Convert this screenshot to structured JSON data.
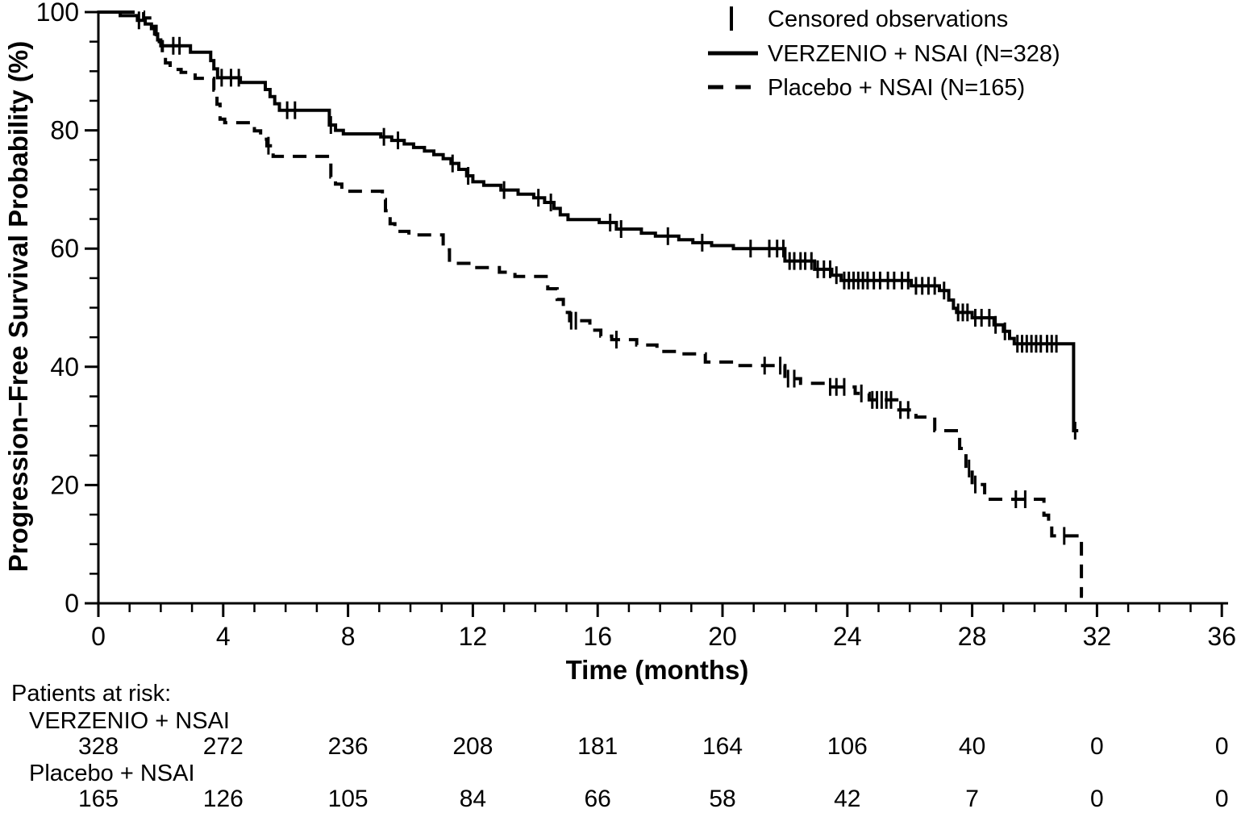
{
  "colors": {
    "foreground": "#000000",
    "background": "#ffffff"
  },
  "chart_data": {
    "type": "line",
    "subtype": "kaplan-meier-step",
    "title": "",
    "xlabel": "Time (months)",
    "ylabel": "Progression–Free Survival Probability (%)",
    "xlim": [
      0,
      36
    ],
    "ylim": [
      0,
      100
    ],
    "grid": false,
    "legend_position": "top-right",
    "x_major_ticks": [
      0,
      4,
      8,
      12,
      16,
      20,
      24,
      28,
      32,
      36
    ],
    "x_minor_step": 1,
    "y_major_ticks": [
      0,
      20,
      40,
      60,
      80,
      100
    ],
    "y_minor_step": 5,
    "legend": [
      {
        "label": "Censored observations",
        "marker": "censor-tick"
      },
      {
        "label": "VERZENIO + NSAI (N=328)",
        "marker": "solid-line"
      },
      {
        "label": "Placebo + NSAI (N=165)",
        "marker": "dashed-line"
      }
    ],
    "series": [
      {
        "name": "VERZENIO + NSAI (N=328)",
        "style": "solid",
        "steps": [
          [
            0,
            100
          ],
          [
            0.7,
            99.4
          ],
          [
            1.25,
            98.6
          ],
          [
            1.5,
            98.0
          ],
          [
            1.7,
            97.2
          ],
          [
            1.8,
            96.3
          ],
          [
            1.9,
            95.3
          ],
          [
            2.0,
            94.3
          ],
          [
            2.95,
            93.2
          ],
          [
            3.6,
            91.8
          ],
          [
            3.7,
            90.4
          ],
          [
            3.82,
            88.9
          ],
          [
            4.55,
            88.1
          ],
          [
            5.35,
            86.9
          ],
          [
            5.5,
            85.7
          ],
          [
            5.65,
            84.5
          ],
          [
            5.8,
            83.4
          ],
          [
            7.4,
            80.9
          ],
          [
            7.6,
            80.0
          ],
          [
            7.85,
            79.4
          ],
          [
            9.05,
            78.9
          ],
          [
            9.4,
            78.3
          ],
          [
            9.8,
            77.7
          ],
          [
            10.1,
            77.1
          ],
          [
            10.45,
            76.5
          ],
          [
            10.75,
            75.9
          ],
          [
            11.05,
            75.2
          ],
          [
            11.3,
            74.4
          ],
          [
            11.55,
            73.4
          ],
          [
            11.8,
            72.3
          ],
          [
            12.0,
            71.3
          ],
          [
            12.35,
            70.7
          ],
          [
            12.9,
            69.9
          ],
          [
            13.45,
            69.2
          ],
          [
            13.95,
            68.6
          ],
          [
            14.3,
            67.8
          ],
          [
            14.6,
            66.8
          ],
          [
            14.8,
            65.7
          ],
          [
            15.05,
            64.9
          ],
          [
            16.05,
            64.4
          ],
          [
            16.6,
            63.3
          ],
          [
            17.4,
            62.6
          ],
          [
            17.85,
            62.1
          ],
          [
            18.6,
            61.5
          ],
          [
            19.05,
            61.0
          ],
          [
            19.65,
            60.5
          ],
          [
            20.35,
            60.0
          ],
          [
            22.0,
            57.9
          ],
          [
            22.95,
            56.5
          ],
          [
            23.5,
            55.5
          ],
          [
            23.8,
            54.6
          ],
          [
            26.05,
            53.7
          ],
          [
            26.95,
            52.9
          ],
          [
            27.25,
            51.3
          ],
          [
            27.4,
            49.9
          ],
          [
            27.5,
            49.2
          ],
          [
            28.0,
            48.3
          ],
          [
            28.7,
            47.1
          ],
          [
            29.0,
            46.0
          ],
          [
            29.2,
            44.8
          ],
          [
            29.35,
            43.9
          ],
          [
            31.25,
            29.2
          ],
          [
            31.4,
            29.2
          ]
        ],
        "censor_times": [
          1.3,
          2.4,
          2.6,
          3.95,
          4.25,
          4.5,
          6.05,
          6.3,
          7.45,
          9.15,
          9.6,
          11.35,
          11.85,
          13.0,
          14.1,
          14.5,
          16.4,
          16.75,
          18.25,
          19.35,
          20.9,
          21.5,
          21.75,
          21.95,
          22.15,
          22.3,
          22.5,
          22.65,
          22.85,
          23.05,
          23.25,
          23.45,
          23.65,
          23.9,
          24.05,
          24.2,
          24.35,
          24.5,
          24.65,
          24.85,
          25.05,
          25.3,
          25.5,
          25.75,
          25.95,
          26.2,
          26.4,
          26.6,
          26.8,
          27.1,
          27.55,
          27.7,
          27.85,
          28.1,
          28.3,
          28.55,
          28.75,
          29.05,
          29.45,
          29.6,
          29.75,
          29.9,
          30.05,
          30.2,
          30.4,
          30.55,
          30.7,
          31.3
        ]
      },
      {
        "name": "Placebo + NSAI (N=165)",
        "style": "dashed",
        "steps": [
          [
            0,
            100
          ],
          [
            1.45,
            99.0
          ],
          [
            1.7,
            97.6
          ],
          [
            1.85,
            96.2
          ],
          [
            1.95,
            95.0
          ],
          [
            2.05,
            93.0
          ],
          [
            2.15,
            91.4
          ],
          [
            2.3,
            90.3
          ],
          [
            2.65,
            89.8
          ],
          [
            3.1,
            88.8
          ],
          [
            3.7,
            86.8
          ],
          [
            3.8,
            84.4
          ],
          [
            3.9,
            81.9
          ],
          [
            4.05,
            81.3
          ],
          [
            5.0,
            79.9
          ],
          [
            5.2,
            78.5
          ],
          [
            5.4,
            77.4
          ],
          [
            5.6,
            75.6
          ],
          [
            7.45,
            72.1
          ],
          [
            7.6,
            70.9
          ],
          [
            7.8,
            69.7
          ],
          [
            9.1,
            68.3
          ],
          [
            9.2,
            66.4
          ],
          [
            9.35,
            64.2
          ],
          [
            9.5,
            62.9
          ],
          [
            9.95,
            62.3
          ],
          [
            11.05,
            59.8
          ],
          [
            11.25,
            57.5
          ],
          [
            12.0,
            56.8
          ],
          [
            12.85,
            56.0
          ],
          [
            13.35,
            55.3
          ],
          [
            14.4,
            53.2
          ],
          [
            14.7,
            51.4
          ],
          [
            14.9,
            49.2
          ],
          [
            15.1,
            47.8
          ],
          [
            15.75,
            46.2
          ],
          [
            16.1,
            45.2
          ],
          [
            16.45,
            44.6
          ],
          [
            17.25,
            43.7
          ],
          [
            17.9,
            42.6
          ],
          [
            18.6,
            42.2
          ],
          [
            19.45,
            40.8
          ],
          [
            20.5,
            40.2
          ],
          [
            22.0,
            38.0
          ],
          [
            22.5,
            37.2
          ],
          [
            23.3,
            36.6
          ],
          [
            24.25,
            35.5
          ],
          [
            24.7,
            34.4
          ],
          [
            25.65,
            32.7
          ],
          [
            26.2,
            31.5
          ],
          [
            26.8,
            29.2
          ],
          [
            27.6,
            26.2
          ],
          [
            27.8,
            22.8
          ],
          [
            28.0,
            20.1
          ],
          [
            28.4,
            17.6
          ],
          [
            30.3,
            14.9
          ],
          [
            30.45,
            13.2
          ],
          [
            30.55,
            11.4
          ],
          [
            31.5,
            1.2
          ],
          [
            31.55,
            1.2
          ]
        ],
        "censor_times": [
          5.45,
          15.15,
          15.3,
          16.6,
          21.35,
          21.85,
          22.1,
          22.3,
          23.45,
          23.65,
          23.9,
          24.45,
          24.8,
          24.95,
          25.1,
          25.25,
          25.4,
          25.7,
          25.95,
          27.9,
          28.1,
          29.4,
          29.7,
          30.95
        ]
      }
    ]
  },
  "risk_table": {
    "title": "Patients at risk:",
    "times": [
      0,
      4,
      8,
      12,
      16,
      20,
      24,
      28,
      32,
      36
    ],
    "rows": [
      {
        "label": "VERZENIO + NSAI",
        "counts": [
          "328",
          "272",
          "236",
          "208",
          "181",
          "164",
          "106",
          "40",
          "0",
          "0"
        ]
      },
      {
        "label": "Placebo + NSAI",
        "counts": [
          "165",
          "126",
          "105",
          "84",
          "66",
          "58",
          "42",
          "7",
          "0",
          "0"
        ]
      }
    ]
  }
}
